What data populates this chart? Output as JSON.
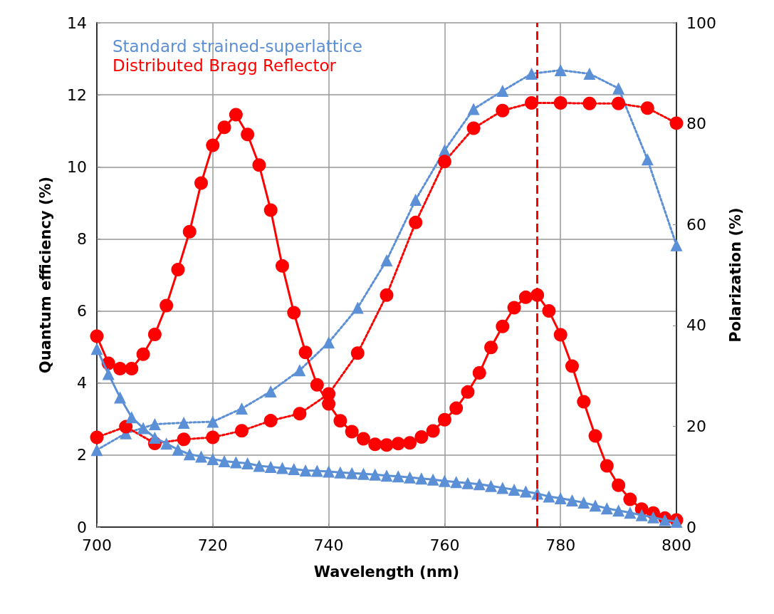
{
  "chart_data": {
    "type": "line",
    "xlabel": "Wavelength (nm)",
    "ylabel": "Quantum efficiency (%)",
    "y2label": "Polarization (%)",
    "xlim": [
      700,
      800
    ],
    "xticks": [
      700,
      720,
      740,
      760,
      780,
      800
    ],
    "ylim": [
      0,
      14
    ],
    "yticks": [
      0,
      2,
      4,
      6,
      8,
      10,
      12,
      14
    ],
    "y2lim": [
      0,
      100
    ],
    "y2ticks": [
      0,
      20,
      40,
      60,
      80,
      100
    ],
    "grid": true,
    "legend": "top left",
    "series": [
      {
        "name": "Standard strained-superlattice",
        "color": "#5b8fd6",
        "marker": "triangle",
        "line_style": "solid",
        "x": [
          700,
          702,
          704,
          706,
          708,
          710,
          712,
          714,
          716,
          718,
          720,
          722,
          724,
          726,
          728,
          730,
          732,
          734,
          736,
          738,
          740,
          742,
          744,
          746,
          748,
          750,
          752,
          754,
          756,
          758,
          760,
          762,
          764,
          766,
          768,
          770,
          772,
          774,
          776,
          778,
          780,
          782,
          784,
          786,
          788,
          790,
          792,
          794,
          796,
          798,
          800
        ],
        "values": [
          4.95,
          4.25,
          3.6,
          3.05,
          2.75,
          2.48,
          2.32,
          2.15,
          2.02,
          1.96,
          1.89,
          1.83,
          1.8,
          1.77,
          1.7,
          1.67,
          1.64,
          1.61,
          1.57,
          1.56,
          1.54,
          1.52,
          1.5,
          1.48,
          1.46,
          1.43,
          1.41,
          1.38,
          1.35,
          1.32,
          1.28,
          1.25,
          1.22,
          1.19,
          1.14,
          1.09,
          1.04,
          0.99,
          0.93,
          0.85,
          0.8,
          0.74,
          0.68,
          0.6,
          0.52,
          0.46,
          0.4,
          0.33,
          0.27,
          0.2,
          0.15
        ]
      },
      {
        "name": "Distributed Bragg Reflector",
        "color": "#ff0000",
        "marker": "circle",
        "line_style": "solid",
        "x": [
          700,
          702,
          704,
          706,
          708,
          710,
          712,
          714,
          716,
          718,
          720,
          722,
          724,
          726,
          728,
          730,
          732,
          734,
          736,
          738,
          740,
          742,
          744,
          746,
          748,
          750,
          752,
          754,
          756,
          758,
          760,
          762,
          764,
          766,
          768,
          770,
          772,
          774,
          776,
          778,
          780,
          782,
          784,
          786,
          788,
          790,
          792,
          794,
          796,
          798,
          800
        ],
        "values": [
          5.3,
          4.55,
          4.4,
          4.4,
          4.8,
          5.35,
          6.15,
          7.15,
          8.2,
          9.55,
          10.6,
          11.1,
          11.45,
          10.9,
          10.05,
          8.8,
          7.25,
          5.95,
          4.85,
          3.95,
          3.42,
          2.95,
          2.65,
          2.45,
          2.3,
          2.28,
          2.32,
          2.34,
          2.5,
          2.67,
          2.98,
          3.3,
          3.75,
          4.28,
          4.99,
          5.57,
          6.09,
          6.38,
          6.44,
          6.0,
          5.34,
          4.47,
          3.48,
          2.53,
          1.7,
          1.16,
          0.77,
          0.5,
          0.39,
          0.25,
          0.2
        ]
      },
      {
        "color": "#5b8fd6",
        "marker": "triangle",
        "line_style": "dotted",
        "axis": "y2",
        "x": [
          700,
          705,
          710,
          715,
          720,
          725,
          730,
          735,
          740,
          745,
          750,
          755,
          760,
          765,
          770,
          775,
          780,
          785,
          790,
          795,
          800
        ],
        "values": [
          15.3,
          18.6,
          20.4,
          20.7,
          20.9,
          23.5,
          26.9,
          31.1,
          36.6,
          43.5,
          52.9,
          64.9,
          74.7,
          82.9,
          86.5,
          89.9,
          90.6,
          89.9,
          87.0,
          72.9,
          55.9
        ]
      },
      {
        "color": "#ff0000",
        "marker": "circle",
        "line_style": "dotted",
        "axis": "y2",
        "x": [
          700,
          705,
          710,
          715,
          720,
          725,
          730,
          735,
          740,
          745,
          750,
          755,
          760,
          765,
          770,
          775,
          780,
          785,
          790,
          795,
          800
        ],
        "values": [
          17.8,
          19.9,
          16.6,
          17.4,
          17.8,
          19.1,
          21.1,
          22.5,
          26.4,
          34.5,
          46.0,
          60.4,
          72.5,
          79.1,
          82.6,
          84.1,
          84.1,
          84.0,
          84.0,
          83.1,
          80.1
        ]
      }
    ],
    "ref_lines": [
      {
        "axis": "x",
        "value": 776,
        "color": "#ff0000",
        "line_style": "dashed"
      }
    ]
  }
}
